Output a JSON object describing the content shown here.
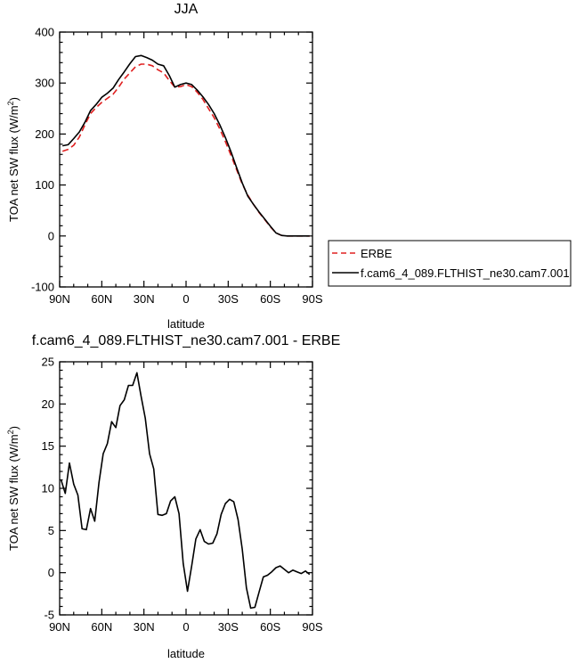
{
  "chart_data": [
    {
      "type": "line",
      "title": "JJA",
      "xlabel": "latitude",
      "ylabel_main": "TOA net SW flux (W/m",
      "ylabel_sup": "2",
      "ylabel_close": ")",
      "xlim": [
        90,
        -90
      ],
      "ylim": [
        -100,
        400
      ],
      "x_ticks": [
        90,
        60,
        30,
        0,
        -30,
        -60,
        -90
      ],
      "x_tick_labels": [
        "90N",
        "60N",
        "30N",
        "0",
        "30S",
        "60S",
        "90S"
      ],
      "y_ticks": [
        -100,
        0,
        100,
        200,
        300,
        400
      ],
      "y_tick_labels": [
        "-100",
        "0",
        "100",
        "200",
        "300",
        "400"
      ],
      "legend_position": "right",
      "series": [
        {
          "name": "ERBE",
          "color": "#e02020",
          "dash": "dashed",
          "x": [
            88,
            84,
            80,
            76,
            72,
            68,
            64,
            60,
            56,
            52,
            48,
            44,
            40,
            36,
            32,
            28,
            24,
            20,
            16,
            12,
            8,
            4,
            0,
            -4,
            -8,
            -12,
            -16,
            -20,
            -24,
            -28,
            -32,
            -36,
            -40,
            -44,
            -48,
            -52,
            -56,
            -60,
            -64,
            -68,
            -72,
            -76,
            -80,
            -84,
            -88
          ],
          "y": [
            166,
            170,
            178,
            194,
            218,
            240,
            252,
            262,
            270,
            278,
            292,
            308,
            320,
            332,
            337,
            337,
            334,
            326,
            320,
            305,
            292,
            293,
            297,
            293,
            282,
            268,
            250,
            232,
            210,
            185,
            158,
            130,
            102,
            80,
            62,
            46,
            32,
            18,
            6,
            1,
            0,
            0,
            0,
            0,
            0
          ]
        },
        {
          "name": "f.cam6_4_089.FLTHIST_ne30.cam7.001",
          "color": "#000000",
          "dash": "solid",
          "x": [
            88,
            84,
            80,
            76,
            72,
            68,
            64,
            60,
            56,
            52,
            48,
            44,
            40,
            36,
            32,
            28,
            24,
            20,
            16,
            12,
            8,
            4,
            0,
            -4,
            -8,
            -12,
            -16,
            -20,
            -24,
            -28,
            -32,
            -36,
            -40,
            -44,
            -48,
            -52,
            -56,
            -60,
            -64,
            -68,
            -72,
            -76,
            -80,
            -84,
            -88
          ],
          "y": [
            177,
            179,
            191,
            204,
            223,
            246,
            258,
            272,
            280,
            290,
            307,
            322,
            338,
            352,
            354,
            350,
            345,
            337,
            334,
            315,
            292,
            297,
            300,
            297,
            286,
            273,
            258,
            240,
            218,
            193,
            165,
            134,
            104,
            78,
            62,
            47,
            33,
            19,
            6,
            1,
            0,
            0,
            0,
            0,
            0
          ]
        }
      ]
    },
    {
      "type": "line",
      "title": "f.cam6_4_089.FLTHIST_ne30.cam7.001 - ERBE",
      "xlabel": "latitude",
      "ylabel_main": "TOA net SW flux (W/m",
      "ylabel_sup": "2",
      "ylabel_close": ")",
      "xlim": [
        90,
        -90
      ],
      "ylim": [
        -5,
        25
      ],
      "x_ticks": [
        90,
        60,
        30,
        0,
        -30,
        -60,
        -90
      ],
      "x_tick_labels": [
        "90N",
        "60N",
        "30N",
        "0",
        "30S",
        "60S",
        "90S"
      ],
      "y_ticks": [
        -5,
        0,
        5,
        10,
        15,
        20,
        25
      ],
      "y_tick_labels": [
        "-5",
        "0",
        "5",
        "10",
        "15",
        "20",
        "25"
      ],
      "series": [
        {
          "color": "#000000",
          "dash": "solid",
          "x": [
            89,
            86,
            83,
            80,
            77,
            74,
            71,
            68,
            65,
            62,
            59,
            56,
            53,
            50,
            47,
            44,
            41,
            38,
            35,
            32,
            29,
            26,
            23,
            20,
            17,
            14,
            11,
            8,
            5,
            2,
            -1,
            -4,
            -7,
            -10,
            -13,
            -16,
            -19,
            -22,
            -25,
            -28,
            -31,
            -34,
            -37,
            -40,
            -43,
            -46,
            -49,
            -52,
            -55,
            -58,
            -61,
            -64,
            -67,
            -70,
            -73,
            -76,
            -79,
            -82,
            -85,
            -88
          ],
          "y": [
            11,
            9.4,
            13,
            10.5,
            9.2,
            5.2,
            5.1,
            7.6,
            6.1,
            10.7,
            14.1,
            15.3,
            17.9,
            17.2,
            19.8,
            20.5,
            22.2,
            22.2,
            23.7,
            20.9,
            18.3,
            14.1,
            12.3,
            6.9,
            6.8,
            7,
            8.5,
            9,
            7,
            1.1,
            -2.2,
            0.8,
            4,
            5.1,
            3.7,
            3.4,
            3.5,
            4.6,
            6.9,
            8.2,
            8.7,
            8.4,
            6.3,
            2.8,
            -1.8,
            -4.2,
            -4.1,
            -2.3,
            -0.5,
            -0.3,
            0.1,
            0.6,
            0.8,
            0.4,
            0,
            0.3,
            0.1,
            -0.1,
            0.2,
            -0.2
          ]
        }
      ]
    }
  ]
}
